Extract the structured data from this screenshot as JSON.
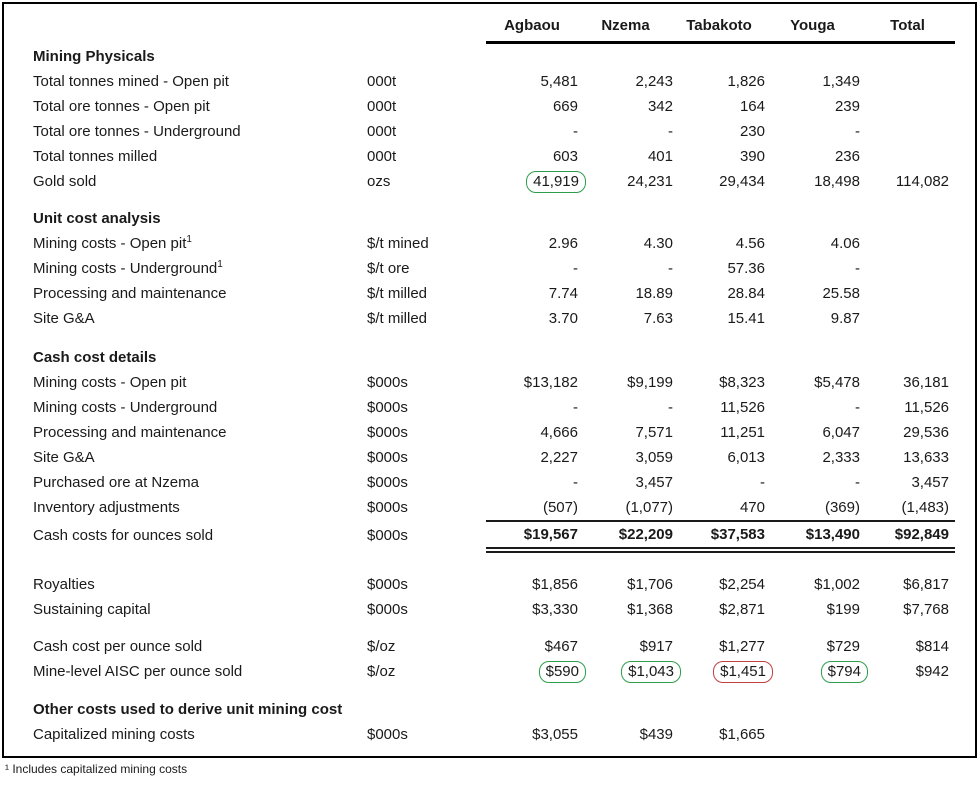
{
  "colors": {
    "green_highlight": "#2f9e4c",
    "red_highlight": "#bf4040",
    "text": "#1a1a1a",
    "border": "#000000"
  },
  "header": {
    "columns": [
      "Agbaou",
      "Nzema",
      "Tabakoto",
      "Youga",
      "Total"
    ]
  },
  "sections": [
    {
      "title": "Mining Physicals",
      "rows": [
        {
          "label": "Total tonnes mined - Open pit",
          "unit": "000t",
          "values": [
            "5,481",
            "2,243",
            "1,826",
            "1,349",
            ""
          ]
        },
        {
          "label": "Total ore tonnes - Open pit",
          "unit": "000t",
          "values": [
            "669",
            "342",
            "164",
            "239",
            ""
          ]
        },
        {
          "label": "Total ore tonnes - Underground",
          "unit": "000t",
          "values": [
            "-",
            "-",
            "230",
            "-",
            ""
          ]
        },
        {
          "label": "Total tonnes milled",
          "unit": "000t",
          "values": [
            "603",
            "401",
            "390",
            "236",
            ""
          ]
        },
        {
          "label": "Gold sold",
          "unit": "ozs",
          "values": [
            "41,919",
            "24,231",
            "29,434",
            "18,498",
            "114,082"
          ],
          "highlights": {
            "0": "green"
          }
        }
      ]
    },
    {
      "title": "Unit cost analysis",
      "rows": [
        {
          "label": "Mining costs - Open pit¹",
          "unit": "$/t mined",
          "values": [
            "2.96",
            "4.30",
            "4.56",
            "4.06",
            ""
          ]
        },
        {
          "label": "Mining costs - Underground¹",
          "unit": "$/t ore",
          "values": [
            "-",
            "-",
            "57.36",
            "-",
            ""
          ]
        },
        {
          "label": "Processing and maintenance",
          "unit": "$/t milled",
          "values": [
            "7.74",
            "18.89",
            "28.84",
            "25.58",
            ""
          ]
        },
        {
          "label": "Site G&A",
          "unit": "$/t milled",
          "values": [
            "3.70",
            "7.63",
            "15.41",
            "9.87",
            ""
          ]
        }
      ]
    },
    {
      "title": "Cash cost details",
      "rows": [
        {
          "label": "Mining costs - Open pit",
          "unit": "$000s",
          "values": [
            "$13,182",
            "$9,199",
            "$8,323",
            "$5,478",
            "36,181"
          ]
        },
        {
          "label": "Mining costs - Underground",
          "unit": "$000s",
          "values": [
            "-",
            "-",
            "11,526",
            "-",
            "11,526"
          ]
        },
        {
          "label": "Processing and maintenance",
          "unit": "$000s",
          "values": [
            "4,666",
            "7,571",
            "11,251",
            "6,047",
            "29,536"
          ]
        },
        {
          "label": "Site G&A",
          "unit": "$000s",
          "values": [
            "2,227",
            "3,059",
            "6,013",
            "2,333",
            "13,633"
          ]
        },
        {
          "label": "Purchased ore at Nzema",
          "unit": "$000s",
          "values": [
            "-",
            "3,457",
            "-",
            "-",
            "3,457"
          ]
        },
        {
          "label": "Inventory adjustments",
          "unit": "$000s",
          "values": [
            "(507)",
            "(1,077)",
            "470",
            "(369)",
            "(1,483)"
          ]
        },
        {
          "label": "Cash costs for ounces sold",
          "unit": "$000s",
          "values": [
            "$19,567",
            "$22,209",
            "$37,583",
            "$13,490",
            "$92,849"
          ],
          "style": "totals"
        }
      ]
    },
    {
      "title": "",
      "rows": [
        {
          "label": "Royalties",
          "unit": "$000s",
          "values": [
            "$1,856",
            "$1,706",
            "$2,254",
            "$1,002",
            "$6,817"
          ]
        },
        {
          "label": "Sustaining capital",
          "unit": "$000s",
          "values": [
            "$3,330",
            "$1,368",
            "$2,871",
            "$199",
            "$7,768"
          ]
        }
      ]
    },
    {
      "title": "",
      "rows": [
        {
          "label": "Cash cost per ounce sold",
          "unit": "$/oz",
          "values": [
            "$467",
            "$917",
            "$1,277",
            "$729",
            "$814"
          ]
        },
        {
          "label": "Mine-level AISC per ounce sold",
          "unit": "$/oz",
          "values": [
            "$590",
            "$1,043",
            "$1,451",
            "$794",
            "$942"
          ],
          "highlights": {
            "0": "green",
            "1": "green",
            "2": "red",
            "3": "green"
          }
        }
      ]
    },
    {
      "title": "Other costs used to derive unit mining cost",
      "rows": [
        {
          "label": "Capitalized mining costs",
          "unit": "$000s",
          "values": [
            "$3,055",
            "$439",
            "$1,665",
            "",
            ""
          ]
        }
      ]
    }
  ],
  "footnote": "¹ Includes capitalized mining costs"
}
